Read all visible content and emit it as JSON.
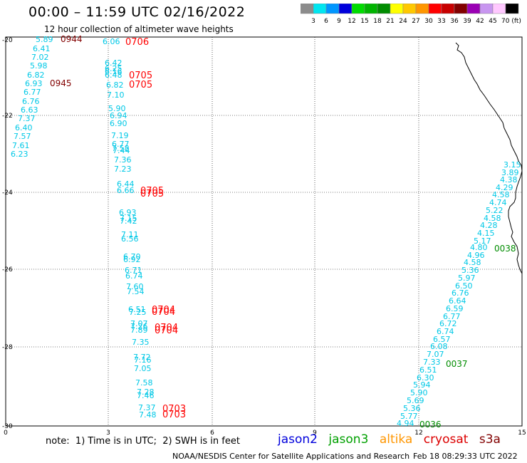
{
  "header": {
    "title": "00:00 – 11:59 UTC 02/16/2022",
    "subtitle": "12 hour collection of altimeter wave heights"
  },
  "color_scale": {
    "labels": [
      "3",
      "6",
      "9",
      "12",
      "15",
      "18",
      "21",
      "24",
      "27",
      "30",
      "33",
      "36",
      "39",
      "42",
      "45",
      "70 (ft)"
    ],
    "colors": [
      "#8c8c8c",
      "#00e6f0",
      "#0096ff",
      "#0000dc",
      "#00dc00",
      "#00b400",
      "#008c00",
      "#ffff00",
      "#ffc800",
      "#ff9600",
      "#ff0000",
      "#c80000",
      "#820000",
      "#9a00b4",
      "#c896f0",
      "#ffc8ff",
      "#000000"
    ]
  },
  "axes": {
    "lat_labels": [
      "-20",
      "-22",
      "-24",
      "-26",
      "-28",
      "-30"
    ],
    "lon_labels": [
      "0",
      "3",
      "6",
      "9",
      "12",
      "15"
    ]
  },
  "tracks": [
    {
      "name": "track-west",
      "values": [
        "5.89",
        "6.41",
        "7.02",
        "5.98",
        "6.82",
        "6.93",
        "6.77",
        "6.76",
        "6.63",
        "7.37",
        "6.40",
        "7.57",
        "7.61",
        "6.23"
      ],
      "times": [
        {
          "text": "0944",
          "color": "#820000"
        },
        {
          "text": "0945",
          "color": "#820000"
        }
      ]
    },
    {
      "name": "track-middle",
      "values": [
        "6.06",
        "6.42",
        "6.25",
        "6.16",
        "6.48",
        "6.82",
        "7.10",
        "5.90",
        "6.94",
        "6.90",
        "7.19",
        "6.77",
        "7.58",
        "7.44",
        "7.36",
        "7.23",
        "6.44",
        "6.66",
        "6.93",
        "7.15",
        "7.42",
        "7.11",
        "6.56",
        "6.70",
        "6.92",
        "6.71",
        "6.74",
        "7.60",
        "7.54",
        "6.51",
        "7.25",
        "7.07",
        "7.26",
        "7.89",
        "7.35",
        "7.72",
        "7.16",
        "7.05",
        "7.58",
        "7.28",
        "7.46",
        "7.37",
        "7.48"
      ],
      "times": [
        {
          "text": "0706",
          "color": "#ff0000"
        },
        {
          "text": "0705",
          "color": "#ff0000"
        },
        {
          "text": "0705",
          "color": "#ff0000"
        },
        {
          "text": "0705",
          "color": "#ff0000"
        },
        {
          "text": "0705",
          "color": "#ff0000"
        },
        {
          "text": "0704",
          "color": "#ff0000"
        },
        {
          "text": "0704",
          "color": "#ff0000"
        },
        {
          "text": "0704",
          "color": "#ff0000"
        },
        {
          "text": "0704",
          "color": "#ff0000"
        },
        {
          "text": "0703",
          "color": "#ff0000"
        },
        {
          "text": "0703",
          "color": "#ff0000"
        }
      ]
    },
    {
      "name": "track-east",
      "values": [
        "3.15",
        "3.89",
        "4.38",
        "4.29",
        "4.58",
        "4.74",
        "5.22",
        "4.58",
        "4.28",
        "4.15",
        "5.17",
        "4.80",
        "4.96",
        "4.58",
        "5.36",
        "5.97",
        "6.50",
        "6.76",
        "6.64",
        "6.59",
        "6.77",
        "6.72",
        "6.74",
        "6.57",
        "6.08",
        "7.07",
        "7.33",
        "6.51",
        "6.30",
        "5.94",
        "5.90",
        "5.69",
        "5.36",
        "5.77",
        "4.94"
      ],
      "times": [
        {
          "text": "0038",
          "color": "#008c00"
        },
        {
          "text": "0037",
          "color": "#008c00"
        },
        {
          "text": "0036",
          "color": "#008c00"
        }
      ]
    }
  ],
  "footer": {
    "note": "note:  1) Time is in UTC;  2) SWH is in feet",
    "satellites": [
      {
        "name": "jason2",
        "color": "#0000dc"
      },
      {
        "name": "jason3",
        "color": "#00a000"
      },
      {
        "name": "altika",
        "color": "#ff9600"
      },
      {
        "name": "cryosat",
        "color": "#dc0000"
      },
      {
        "name": "s3a",
        "color": "#820000"
      }
    ],
    "credit": "NOAA/NESDIS Center for Satellite Applications and Research",
    "timestamp": "Feb 18 08:29:33 UTC 2022"
  }
}
